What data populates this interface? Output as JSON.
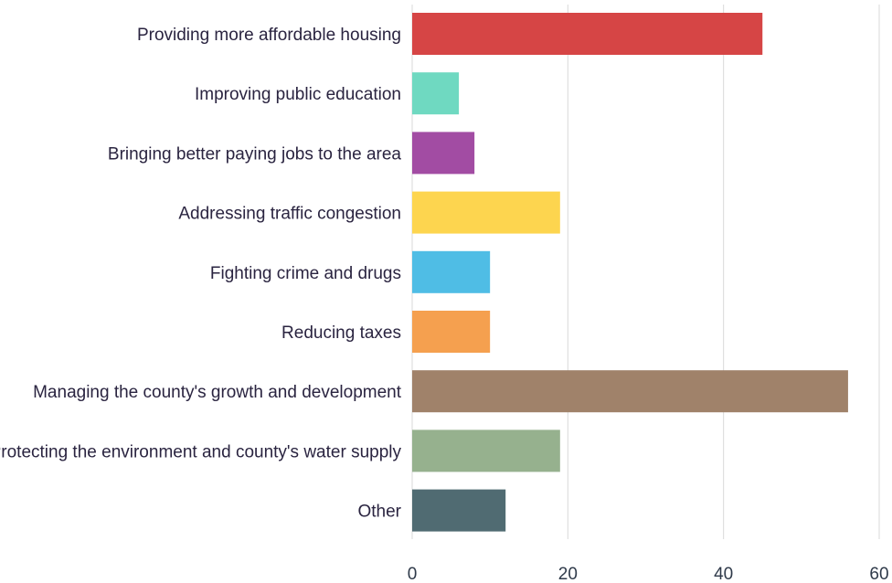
{
  "chart_data": {
    "type": "bar",
    "orientation": "horizontal",
    "title": "",
    "xlabel": "",
    "ylabel": "",
    "categories": [
      "Providing more affordable housing",
      "Improving public education",
      "Bringing better paying jobs to the area",
      "Addressing traffic congestion",
      "Fighting crime and drugs",
      "Reducing taxes",
      "Managing the county's growth and development",
      "Protecting the environment and county's water supply",
      "Other"
    ],
    "values": [
      45,
      6,
      8,
      19,
      10,
      10,
      56,
      19,
      12
    ],
    "colors": [
      "#d64545",
      "#6fd9c1",
      "#a24ca3",
      "#fdd54f",
      "#4fbde5",
      "#f5a04f",
      "#a0826a",
      "#96b18e",
      "#506b72"
    ],
    "xlim": [
      0,
      60
    ],
    "xticks": [
      0,
      20,
      40,
      60
    ],
    "grid": true,
    "legend": "none"
  }
}
